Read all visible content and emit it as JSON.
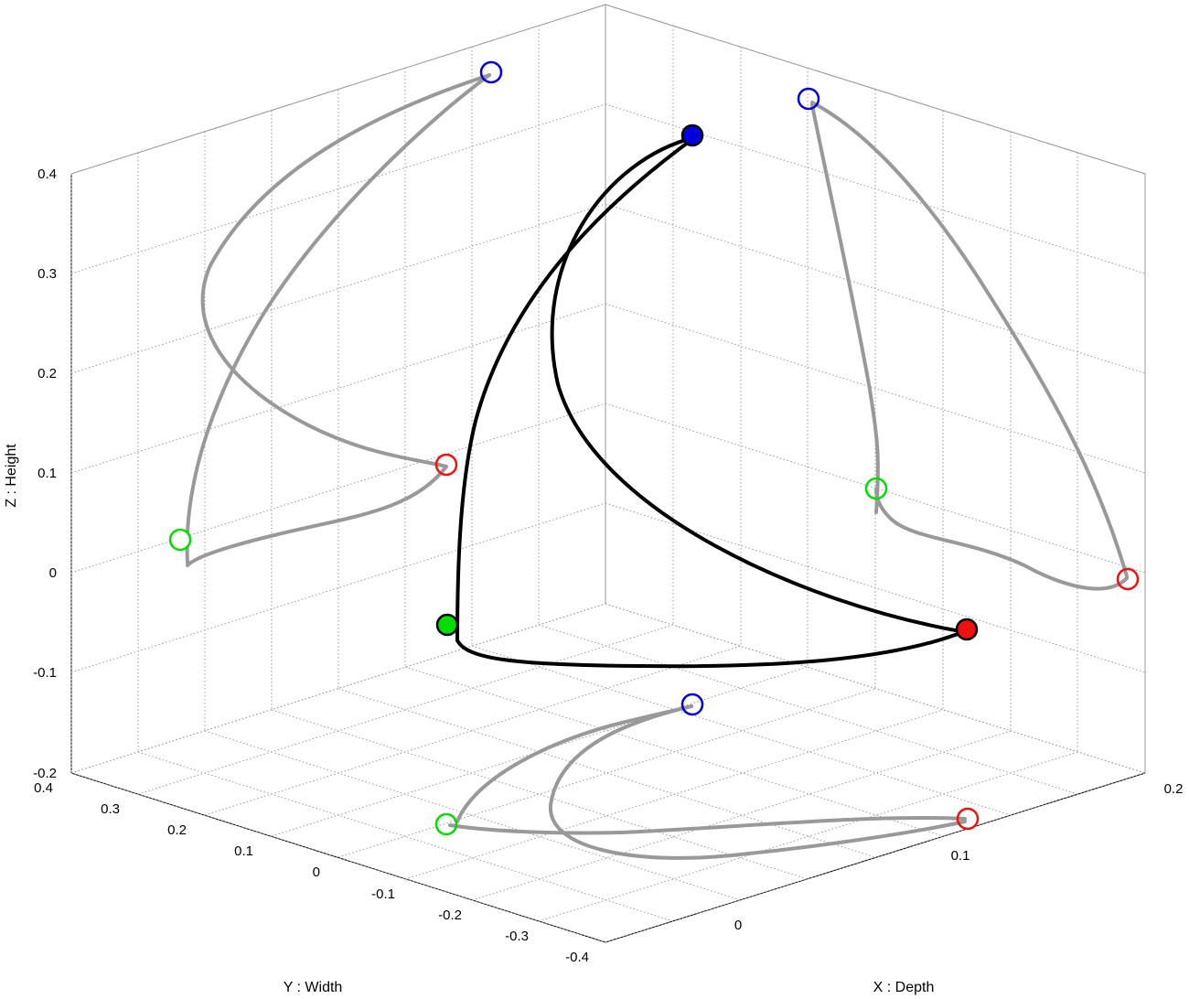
{
  "chart_data": {
    "type": "3d-line",
    "xlabel": "X : Depth",
    "ylabel": "Y : Width",
    "zlabel": "Z : Height",
    "xlim": [
      -0.05,
      0.2
    ],
    "ylim": [
      -0.4,
      0.4
    ],
    "zlim": [
      -0.2,
      0.4
    ],
    "x_ticks": [
      "0",
      "0.1",
      "0.2"
    ],
    "y_ticks": [
      "-0.4",
      "-0.3",
      "-0.2",
      "-0.1",
      "0",
      "0.1",
      "0.2",
      "0.3",
      "0.4"
    ],
    "z_ticks": [
      "-0.2",
      "-0.1",
      "0",
      "0.1",
      "0.2",
      "0.3",
      "0.4"
    ],
    "grid": true,
    "colors": {
      "trajectory": "#000000",
      "projection": "#999999",
      "green_marker": "#00dd00",
      "red_marker": "#ee1111",
      "blue_marker": "#0000dd"
    },
    "markers": {
      "green": {
        "x": -0.02,
        "y": 0.02,
        "z": 0.02
      },
      "red": {
        "x": 0.19,
        "y": -0.13,
        "z": 0.1
      },
      "blue": {
        "x": 0.12,
        "y": 0.18,
        "z": 0.38
      }
    },
    "series": [
      {
        "style": "3d-trajectory",
        "segments": [
          {
            "from": "green",
            "to": "blue"
          },
          {
            "from": "blue",
            "to": "red"
          },
          {
            "from": "red",
            "to": "green"
          }
        ]
      },
      {
        "style": "projection-yz",
        "segments": [
          {
            "from": "green",
            "to": "blue"
          },
          {
            "from": "blue",
            "to": "red"
          },
          {
            "from": "red",
            "to": "green"
          }
        ]
      },
      {
        "style": "projection-xz",
        "segments": [
          {
            "from": "green",
            "to": "blue"
          },
          {
            "from": "blue",
            "to": "red"
          },
          {
            "from": "red",
            "to": "green"
          }
        ]
      },
      {
        "style": "projection-xy",
        "segments": [
          {
            "from": "green",
            "to": "blue"
          },
          {
            "from": "blue",
            "to": "red"
          },
          {
            "from": "red",
            "to": "green"
          }
        ]
      }
    ]
  }
}
